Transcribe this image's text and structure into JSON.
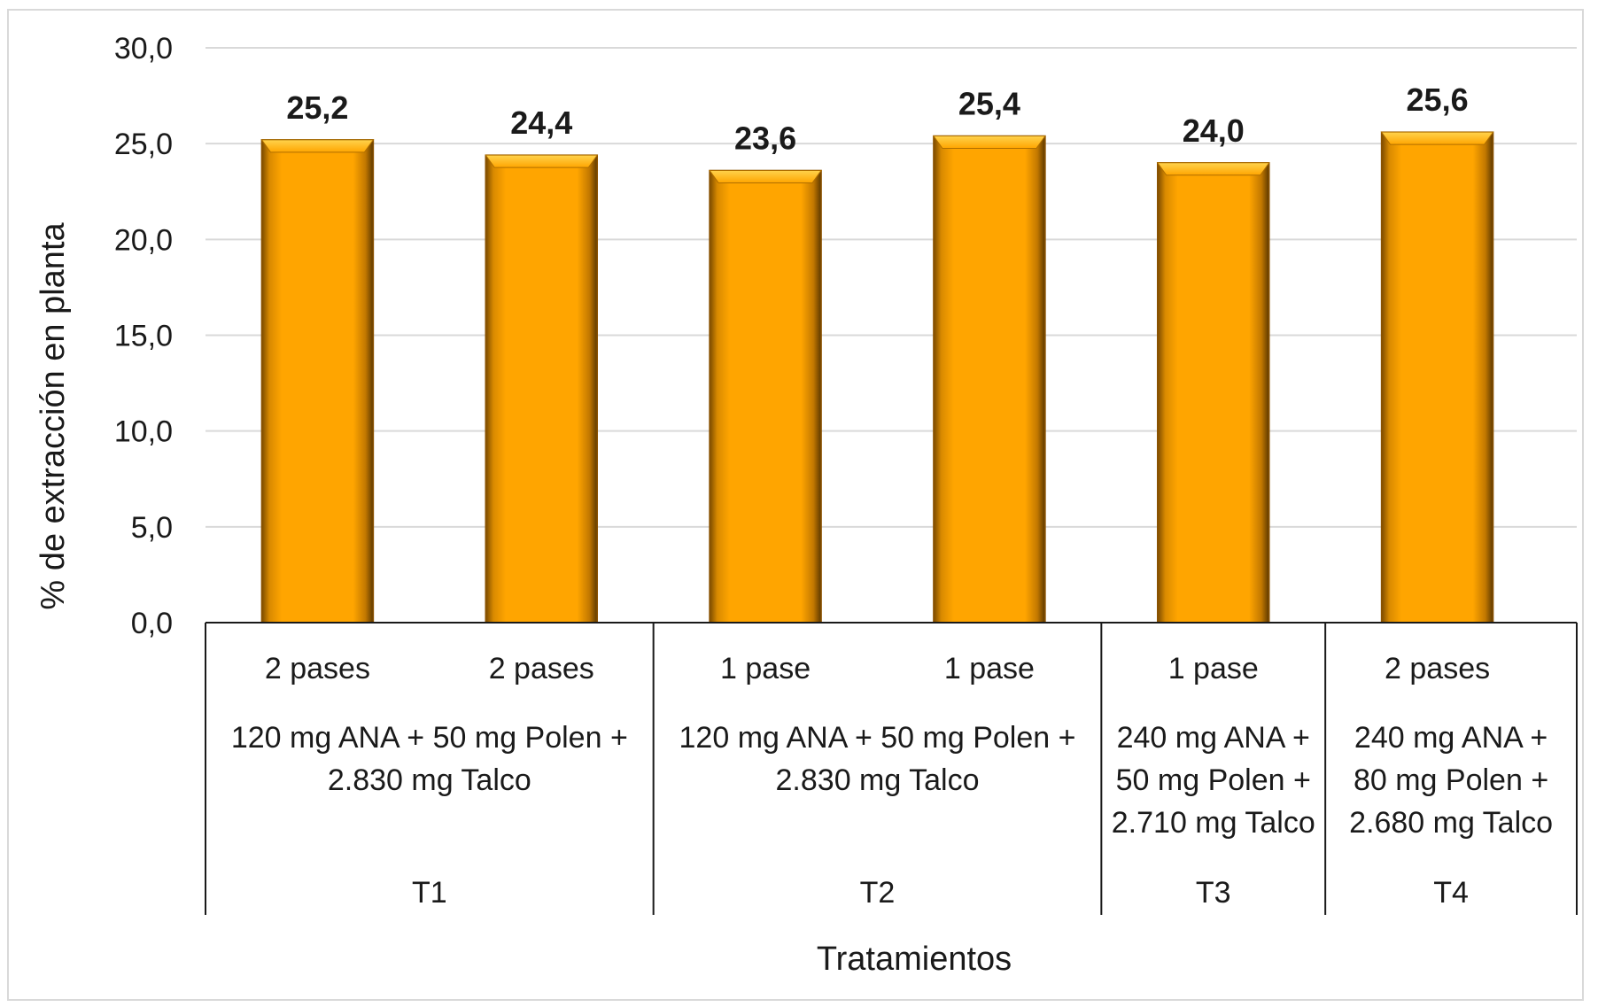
{
  "chart_data": {
    "type": "bar",
    "title": "",
    "xlabel": "Tratamientos",
    "ylabel": "% de extracción en planta",
    "ylim": [
      0,
      30
    ],
    "y_ticks": [
      "0,0",
      "5,0",
      "10,0",
      "15,0",
      "20,0",
      "25,0",
      "30,0"
    ],
    "grid": true,
    "legend": "none",
    "bar_color": "#FFA000",
    "bar_edge_color": "#8A5200",
    "categories": [
      "2 pases",
      "2 pases",
      "1 pase",
      "1 pase",
      "1 pase",
      "2 pases"
    ],
    "values": [
      25.2,
      24.4,
      23.6,
      25.4,
      24.0,
      25.6
    ],
    "value_labels": [
      "25,2",
      "24,4",
      "23,6",
      "25,4",
      "24,0",
      "25,6"
    ],
    "groups": [
      {
        "name": "T1",
        "lines": [
          "120 mg ANA + 50 mg Polen +",
          "2.830 mg Talco"
        ],
        "bar_count": 2
      },
      {
        "name": "T2",
        "lines": [
          "120 mg ANA + 50 mg Polen +",
          "2.830 mg Talco"
        ],
        "bar_count": 2
      },
      {
        "name": "T3",
        "lines": [
          "240 mg ANA +",
          "50 mg Polen +",
          "2.710 mg Talco"
        ],
        "bar_count": 1
      },
      {
        "name": "T4",
        "lines": [
          "240 mg ANA +",
          "80 mg Polen +",
          "2.680 mg Talco"
        ],
        "bar_count": 1
      }
    ]
  }
}
